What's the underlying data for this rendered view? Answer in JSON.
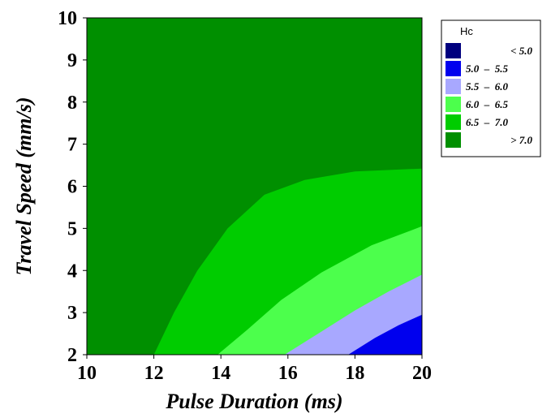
{
  "chart_data": {
    "type": "contour",
    "title": "",
    "xlabel": "Pulse Duration (ms)",
    "ylabel": "Travel Speed (mm/s)",
    "xlim": [
      10,
      20
    ],
    "ylim": [
      2,
      10
    ],
    "xticks": [
      "10",
      "12",
      "14",
      "16",
      "18",
      "20"
    ],
    "yticks": [
      "2",
      "3",
      "4",
      "5",
      "6",
      "7",
      "8",
      "9",
      "10"
    ],
    "grid": false,
    "legend": {
      "title": "Hc",
      "position": "top-right",
      "entries": [
        {
          "label": "< 5.0",
          "color": "#00007f"
        },
        {
          "label": "5.0  –  5.5",
          "color": "#0000ee"
        },
        {
          "label": "5.5  –  6.0",
          "color": "#a8a8ff"
        },
        {
          "label": "6.0  –  6.5",
          "color": "#4cff4c"
        },
        {
          "label": "6.5  –  7.0",
          "color": "#00cc00"
        },
        {
          "label": "> 7.0",
          "color": "#008f00"
        }
      ]
    },
    "contours": [
      {
        "level": 7.0,
        "points": [
          [
            12,
            2
          ],
          [
            12.6,
            3
          ],
          [
            13.3,
            4
          ],
          [
            14.2,
            5
          ],
          [
            15.3,
            5.8
          ],
          [
            16.5,
            6.15
          ],
          [
            18,
            6.35
          ],
          [
            20,
            6.42
          ]
        ]
      },
      {
        "level": 6.5,
        "points": [
          [
            13.9,
            2
          ],
          [
            14.8,
            2.6
          ],
          [
            15.8,
            3.3
          ],
          [
            17,
            3.95
          ],
          [
            18.5,
            4.6
          ],
          [
            20,
            5.05
          ]
        ]
      },
      {
        "level": 6.0,
        "points": [
          [
            15.9,
            2
          ],
          [
            16.9,
            2.5
          ],
          [
            18.0,
            3.05
          ],
          [
            19.0,
            3.5
          ],
          [
            20,
            3.9
          ]
        ]
      },
      {
        "level": 5.5,
        "points": [
          [
            17.8,
            2
          ],
          [
            18.6,
            2.4
          ],
          [
            19.3,
            2.7
          ],
          [
            20,
            2.95
          ]
        ]
      }
    ]
  }
}
